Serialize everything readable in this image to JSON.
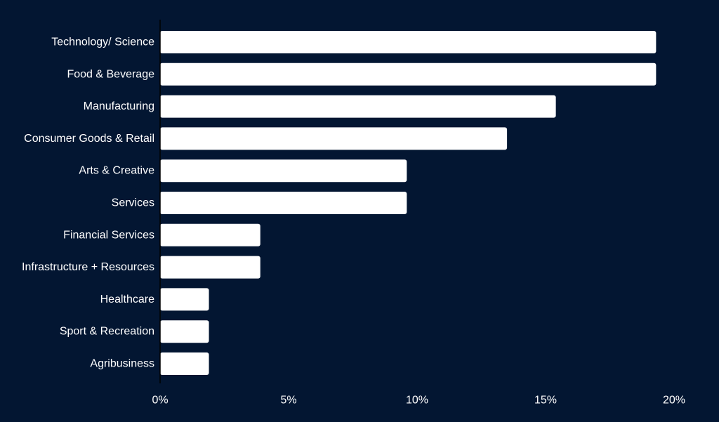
{
  "colors": {
    "background": "#031632",
    "bar": "#ffffff",
    "text": "#ffffff",
    "axis": "#000000"
  },
  "chart_data": {
    "type": "bar",
    "orientation": "horizontal",
    "categories": [
      "Technology/ Science",
      "Food & Beverage",
      "Manufacturing",
      "Consumer Goods & Retail",
      "Arts & Creative",
      "Services",
      "Financial Services",
      "Infrastructure + Resources",
      "Healthcare",
      "Sport & Recreation",
      "Agribusiness"
    ],
    "values": [
      19.3,
      19.3,
      15.4,
      13.5,
      9.6,
      9.6,
      3.9,
      3.9,
      1.9,
      1.9,
      1.9
    ],
    "xlim": [
      0,
      20
    ],
    "xticks": [
      0,
      5,
      10,
      15,
      20
    ],
    "xtick_labels": [
      "0%",
      "5%",
      "10%",
      "15%",
      "20%"
    ],
    "title": "",
    "xlabel": "",
    "ylabel": "",
    "grid": false,
    "legend": "none"
  }
}
